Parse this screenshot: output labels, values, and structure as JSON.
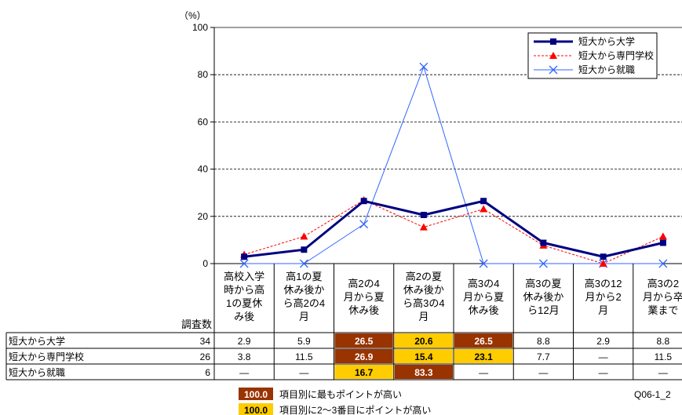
{
  "chart_data": {
    "type": "line",
    "y_unit": "（%）",
    "ylim": [
      0,
      100
    ],
    "y_ticks": [
      "0",
      "20",
      "40",
      "60",
      "80",
      "100"
    ],
    "grid": true,
    "legend_position": "top-right",
    "categories": [
      [
        "高校入学",
        "時から高",
        "1の夏休",
        "み後"
      ],
      [
        "高1の夏",
        "休み後か",
        "ら高2の4",
        "月"
      ],
      [
        "高2の4",
        "月から夏",
        "休み後"
      ],
      [
        "高2の夏",
        "休み後か",
        "ら高3の4",
        "月"
      ],
      [
        "高3の4",
        "月から夏",
        "休み後"
      ],
      [
        "高3の夏",
        "休み後か",
        "ら12月"
      ],
      [
        "高3の12",
        "月から2",
        "月"
      ],
      [
        "高3の2",
        "月から卒",
        "業まで"
      ]
    ],
    "series": [
      {
        "name": "短大から大学",
        "color": "#000080",
        "marker": "square",
        "values": [
          2.9,
          5.9,
          26.5,
          20.6,
          26.5,
          8.8,
          2.9,
          8.8
        ]
      },
      {
        "name": "短大から専門学校",
        "color": "#ff0000",
        "marker": "triangle",
        "values": [
          3.8,
          11.5,
          26.9,
          15.4,
          23.1,
          7.7,
          0,
          11.5
        ]
      },
      {
        "name": "短大から就職",
        "color": "#3366ff",
        "marker": "x",
        "values": [
          0,
          0,
          16.7,
          83.3,
          0,
          0,
          0,
          0
        ]
      }
    ],
    "table": {
      "count_header": "調査数",
      "rows": [
        {
          "label": "短大から大学",
          "n": "34",
          "cells": [
            "2.9",
            "5.9",
            "26.5",
            "20.6",
            "26.5",
            "8.8",
            "2.9",
            "8.8"
          ],
          "rank": [
            0,
            0,
            1,
            2,
            1,
            0,
            0,
            0
          ]
        },
        {
          "label": "短大から専門学校",
          "n": "26",
          "cells": [
            "3.8",
            "11.5",
            "26.9",
            "15.4",
            "23.1",
            "7.7",
            "—",
            "11.5"
          ],
          "rank": [
            0,
            0,
            1,
            2,
            2,
            0,
            0,
            0
          ]
        },
        {
          "label": "短大から就職",
          "n": "6",
          "cells": [
            "—",
            "—",
            "16.7",
            "83.3",
            "—",
            "—",
            "—",
            "—"
          ],
          "rank": [
            0,
            0,
            2,
            1,
            0,
            0,
            0,
            0
          ]
        }
      ]
    },
    "notes": {
      "top_sample": "100.0",
      "top_label": "項目別に最もポイントが高い",
      "second_sample": "100.0",
      "second_label": "項目別に2～3番目にポイントが高い",
      "code": "Q06-1_2"
    },
    "colors": {
      "top": "#993300",
      "second": "#ffcc00"
    }
  }
}
